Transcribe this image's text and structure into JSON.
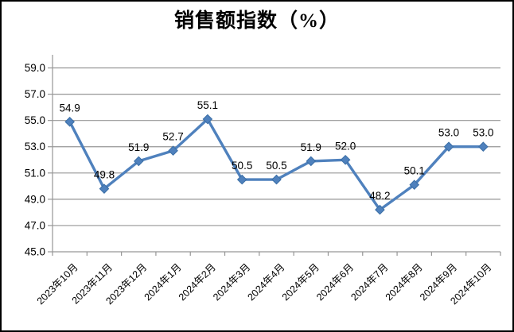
{
  "window": {
    "background_color": "#ffffff",
    "border_color": "#000000"
  },
  "chart_data": {
    "type": "line",
    "title": "销售额指数（%）",
    "categories": [
      "2023年10月",
      "2023年11月",
      "2023年12月",
      "2024年1月",
      "2024年2月",
      "2024年3月",
      "2024年4月",
      "2024年5月",
      "2024年6月",
      "2024年7月",
      "2024年8月",
      "2024年9月",
      "2024年10月"
    ],
    "series": [
      {
        "name": "销售额指数",
        "values": [
          54.9,
          49.8,
          51.9,
          52.7,
          55.1,
          50.5,
          50.5,
          51.9,
          52.0,
          48.2,
          50.1,
          53.0,
          53.0
        ],
        "data_labels": [
          "54.9",
          "49.8",
          "51.9",
          "52.7",
          "55.1",
          "50.5",
          "50.5",
          "51.9",
          "52.0",
          "48.2",
          "50.1",
          "53.0",
          "53.0"
        ]
      }
    ],
    "xlabel": "",
    "ylabel": "",
    "ylim": [
      45,
      60
    ],
    "ytick_step": 2,
    "ytick_labels": [
      "45.0",
      "47.0",
      "49.0",
      "51.0",
      "53.0",
      "55.0",
      "57.0",
      "59.0"
    ],
    "grid": true,
    "legend_position": "none",
    "marker": "diamond",
    "colors": {
      "line": "#4F81BD",
      "marker_fill": "#4F81BD",
      "marker_edge": "#3A6EA5",
      "gridline": "#969696",
      "axis": "#969696",
      "label_text": "#000000"
    }
  }
}
